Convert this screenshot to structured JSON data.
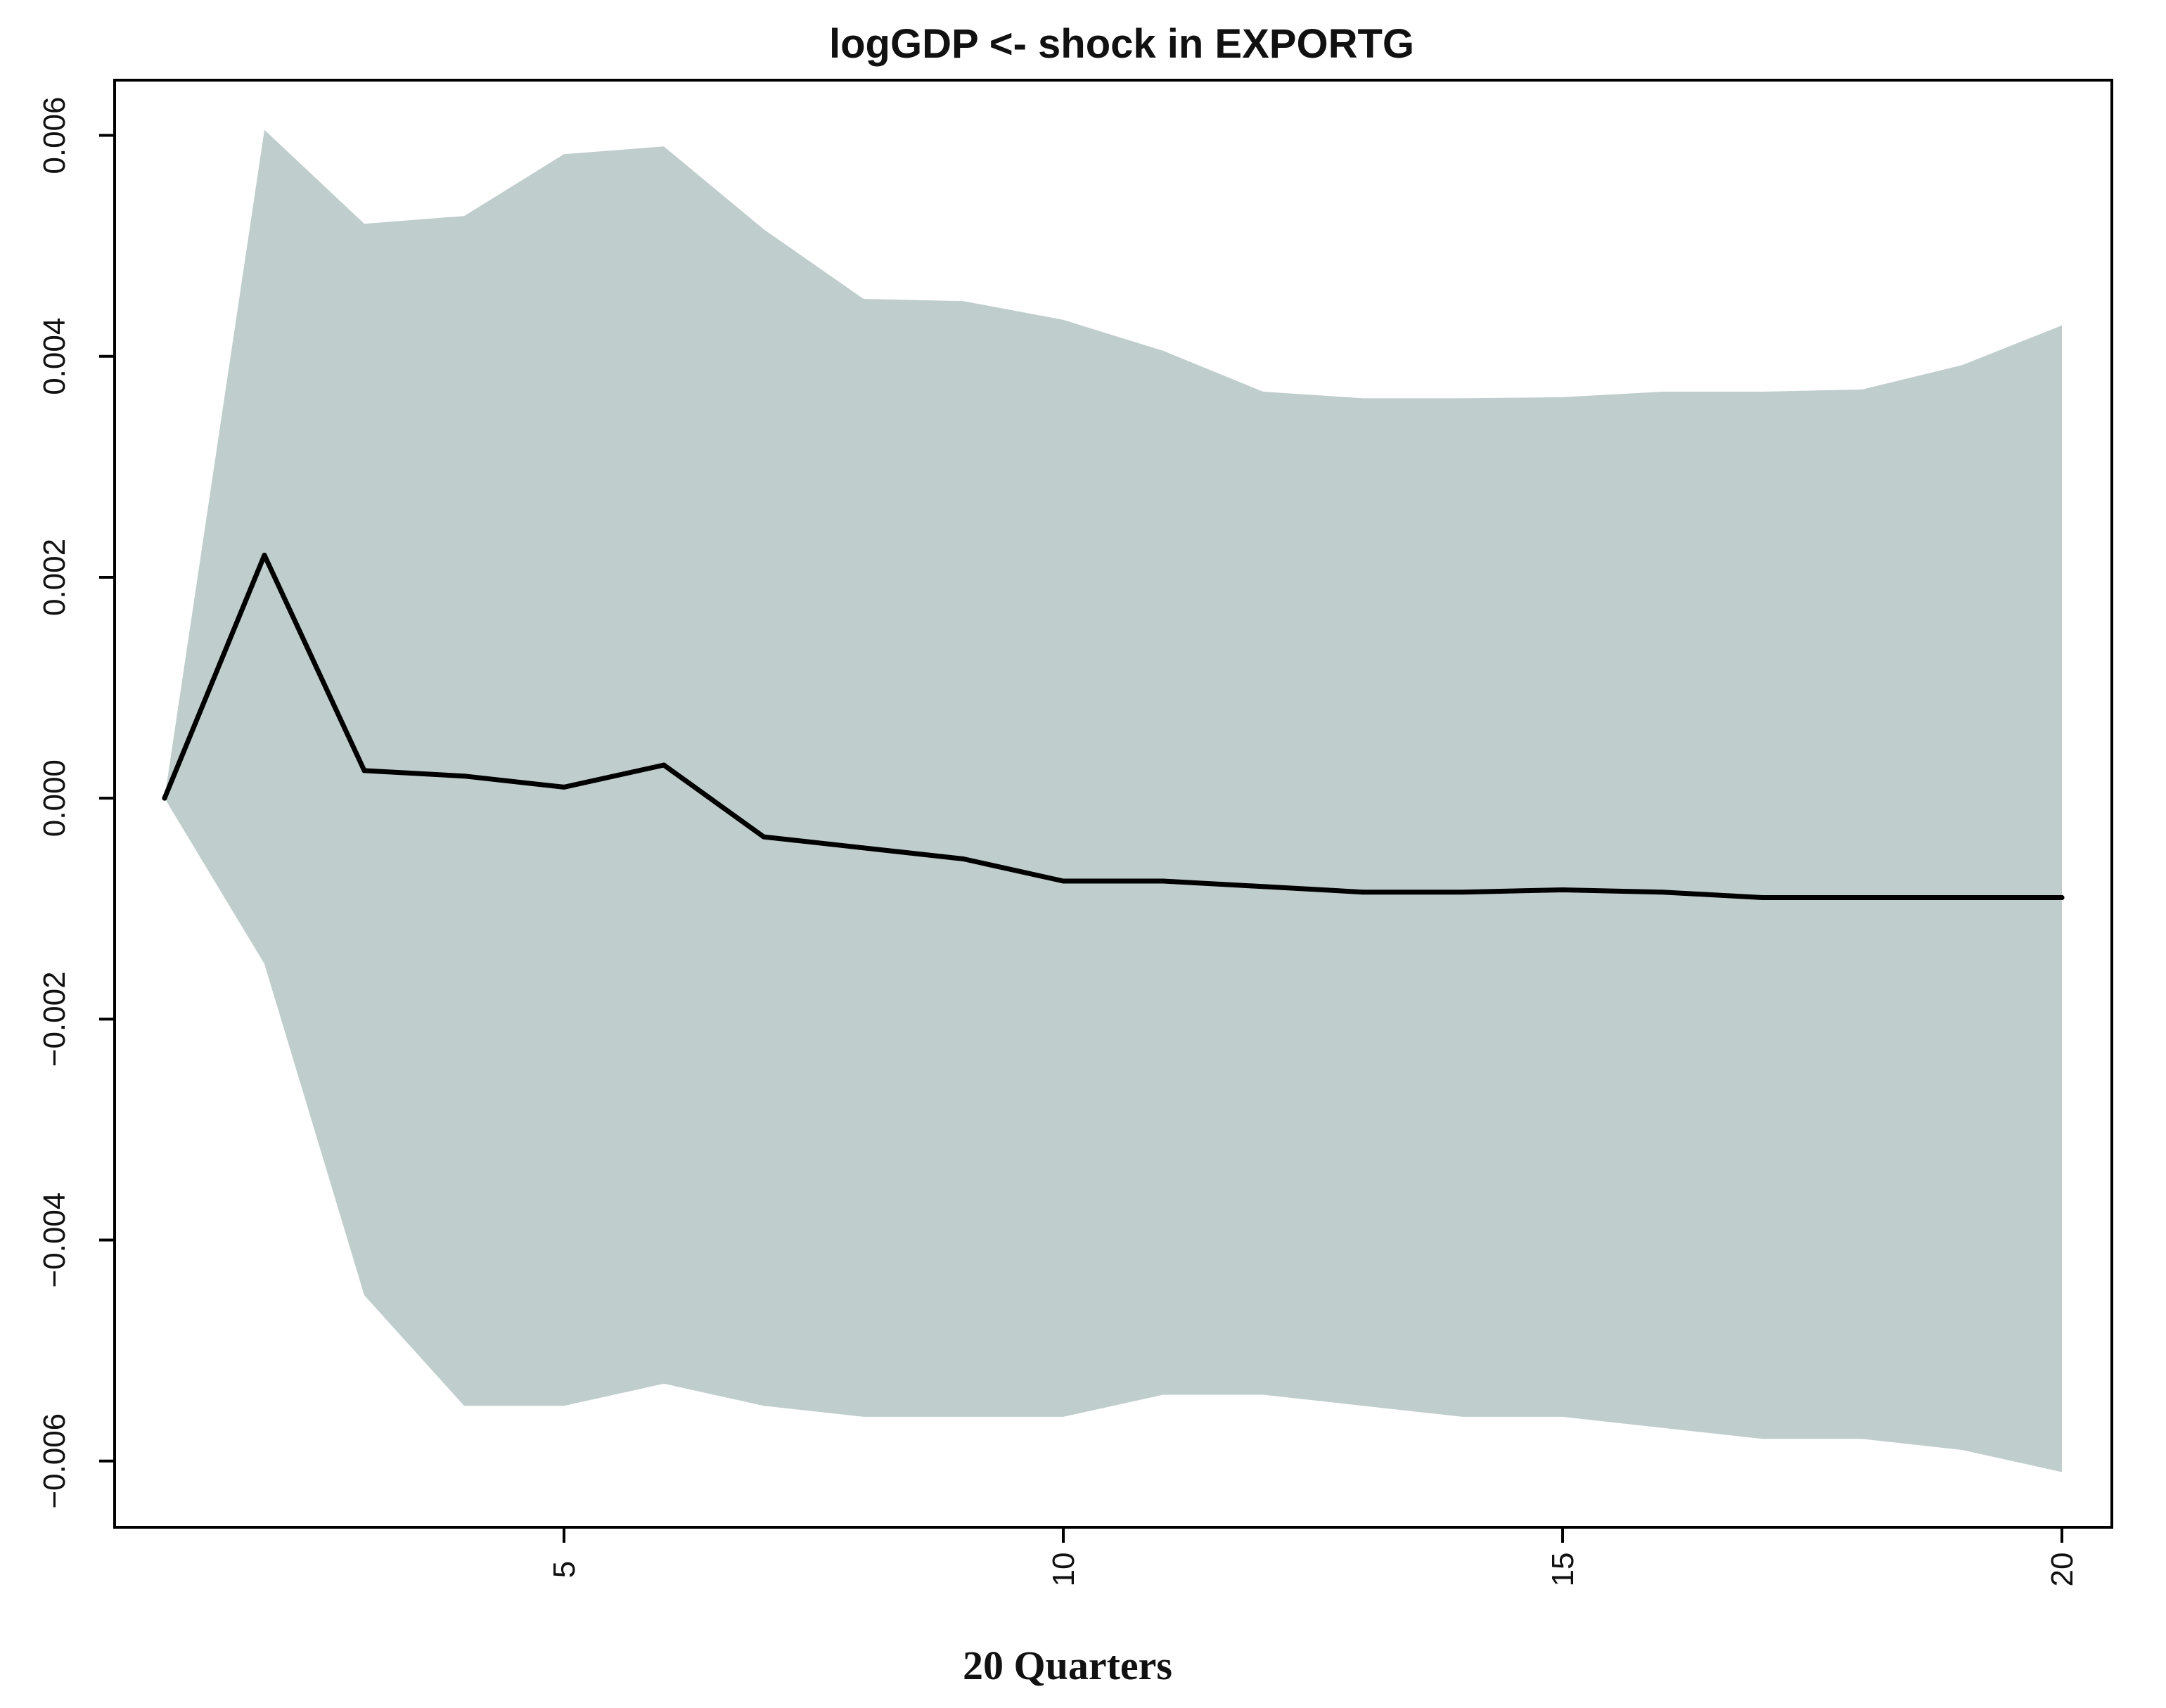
{
  "chart_data": {
    "type": "line",
    "title": "logGDP <- shock in EXPORTG",
    "xlabel": "20 Quarters",
    "ylabel": "",
    "xlim": [
      0.5,
      20.5
    ],
    "ylim": [
      -0.0066,
      0.0065
    ],
    "x_ticks": [
      5,
      10,
      15,
      20
    ],
    "x_tick_labels": [
      "5",
      "10",
      "15",
      "20"
    ],
    "y_ticks": [
      -0.006,
      -0.004,
      -0.002,
      0.0,
      0.002,
      0.004,
      0.006
    ],
    "y_tick_labels": [
      "−0.006",
      "−0.004",
      "−0.002",
      "0.000",
      "0.002",
      "0.004",
      "0.006"
    ],
    "grid": false,
    "series": [
      {
        "role": "response",
        "color": "#000000",
        "x": [
          1,
          2,
          3,
          4,
          5,
          6,
          7,
          8,
          9,
          10,
          11,
          12,
          13,
          14,
          15,
          16,
          17,
          18,
          19,
          20
        ],
        "y": [
          0.0,
          0.0022,
          0.00025,
          0.0002,
          0.0001,
          0.0003,
          -0.00035,
          -0.00045,
          -0.00055,
          -0.00075,
          -0.00075,
          -0.0008,
          -0.00085,
          -0.00085,
          -0.00083,
          -0.00085,
          -0.0009,
          -0.0009,
          -0.0009,
          -0.0009
        ]
      }
    ],
    "band": {
      "color": "#bfcdcc",
      "x": [
        1,
        2,
        3,
        4,
        5,
        6,
        7,
        8,
        9,
        10,
        11,
        12,
        13,
        14,
        15,
        16,
        17,
        18,
        19,
        20
      ],
      "upper": [
        0.0,
        0.00605,
        0.0052,
        0.00527,
        0.00583,
        0.0059,
        0.00515,
        0.00452,
        0.0045,
        0.00433,
        0.00405,
        0.00368,
        0.00362,
        0.00362,
        0.00363,
        0.00368,
        0.00368,
        0.0037,
        0.00392,
        0.00428
      ],
      "lower": [
        0.0,
        -0.0015,
        -0.0045,
        -0.0055,
        -0.0055,
        -0.0053,
        -0.0055,
        -0.0056,
        -0.0056,
        -0.0056,
        -0.0054,
        -0.0054,
        -0.0055,
        -0.0056,
        -0.0056,
        -0.0057,
        -0.0058,
        -0.0058,
        -0.0059,
        -0.0061
      ]
    }
  }
}
